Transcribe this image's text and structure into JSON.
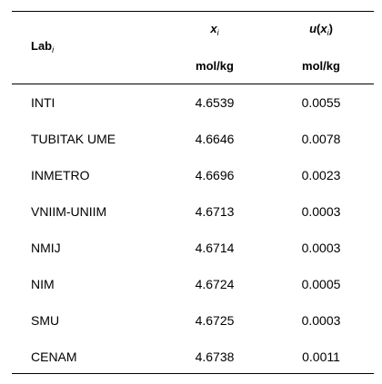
{
  "table": {
    "header": {
      "lab": {
        "text": "Lab",
        "sub": "i"
      },
      "x": {
        "text": "x",
        "sub": "i"
      },
      "u": {
        "symbol": "u",
        "open": "(",
        "arg": "x",
        "sub": "i",
        "close": ")"
      },
      "units": [
        "mol/kg",
        "mol/kg"
      ]
    },
    "rows": [
      [
        "INTI",
        "4.6539",
        "0.0055"
      ],
      [
        "TUBITAK UME",
        "4.6646",
        "0.0078"
      ],
      [
        "INMETRO",
        "4.6696",
        "0.0023"
      ],
      [
        "VNIIM-UNIIM",
        "4.6713",
        "0.0003"
      ],
      [
        "NMIJ",
        "4.6714",
        "0.0003"
      ],
      [
        "NIM",
        "4.6724",
        "0.0005"
      ],
      [
        "SMU",
        "4.6725",
        "0.0003"
      ],
      [
        "CENAM",
        "4.6738",
        "0.0011"
      ]
    ]
  }
}
